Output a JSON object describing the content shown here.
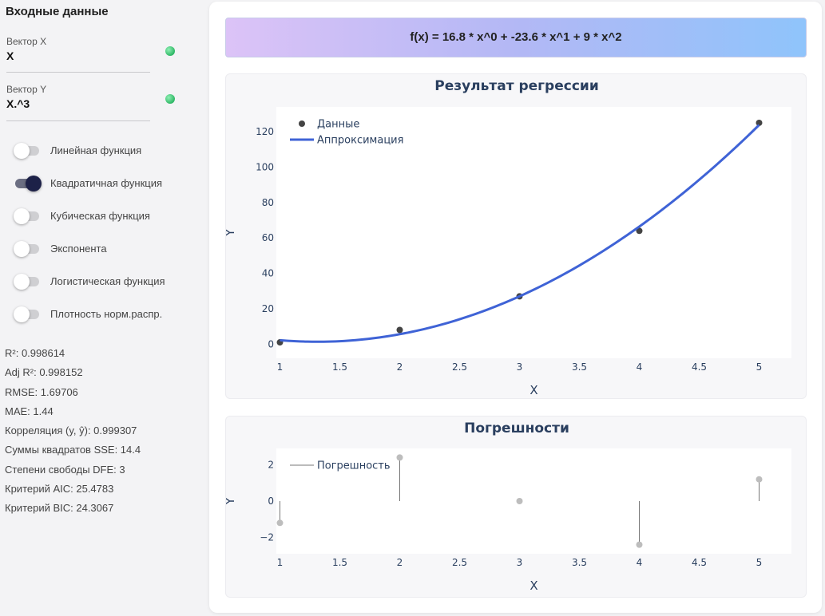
{
  "sidebar": {
    "title": "Входные данные",
    "vector_x": {
      "label": "Вектор X",
      "value": "X"
    },
    "vector_y": {
      "label": "Вектор Y",
      "value": "X.^3"
    },
    "toggles": [
      {
        "label": "Линейная функция",
        "on": false
      },
      {
        "label": "Квадратичная функция",
        "on": true
      },
      {
        "label": "Кубическая функция",
        "on": false
      },
      {
        "label": "Экспонента",
        "on": false
      },
      {
        "label": "Логистическая функция",
        "on": false
      },
      {
        "label": "Плотность норм.распр.",
        "on": false
      }
    ],
    "stats": [
      "R²: 0.998614",
      "Adj R²: 0.998152",
      "RMSE: 1.69706",
      "MAE: 1.44",
      "Корреляция (y, ŷ): 0.999307",
      "Суммы квадратов SSE: 14.4",
      "Степени свободы DFE: 3",
      "Критерий AIC: 25.4783",
      "Критерий BIC: 24.3067"
    ]
  },
  "formula": "f(x) = 16.8 * x^0 + -23.6 * x^1 + 9 * x^2",
  "chart_data": [
    {
      "type": "scatter",
      "title": "Результат регрессии",
      "xlabel": "X",
      "ylabel": "Y",
      "xlim": [
        0.97,
        5.27
      ],
      "ylim": [
        -8,
        134
      ],
      "xticks": [
        1,
        1.5,
        2,
        2.5,
        3,
        3.5,
        4,
        4.5,
        5
      ],
      "yticks": [
        0,
        20,
        40,
        60,
        80,
        100,
        120
      ],
      "legend_position": "top-left",
      "series": [
        {
          "name": "Данные",
          "kind": "points",
          "color": "#444444",
          "x": [
            1,
            2,
            3,
            4,
            5
          ],
          "y": [
            1,
            8,
            27,
            64,
            125
          ]
        },
        {
          "name": "Аппроксимация",
          "kind": "line",
          "color": "#3f63d6",
          "formula": [
            16.8,
            -23.6,
            9
          ],
          "x_range": [
            1,
            5
          ]
        }
      ]
    },
    {
      "type": "scatter",
      "title": "Погрешности",
      "xlabel": "X",
      "ylabel": "Y",
      "xlim": [
        0.97,
        5.27
      ],
      "ylim": [
        -2.9,
        2.9
      ],
      "xticks": [
        1,
        1.5,
        2,
        2.5,
        3,
        3.5,
        4,
        4.5,
        5
      ],
      "yticks": [
        -2,
        0,
        2
      ],
      "legend_position": "top-left",
      "series": [
        {
          "name": "Погрешность",
          "kind": "stems",
          "color": "#777777",
          "marker_color": "#bdbdbd",
          "x": [
            1,
            2,
            3,
            4,
            5
          ],
          "y": [
            -1.2,
            2.4,
            0,
            -2.4,
            1.2
          ]
        }
      ]
    }
  ]
}
